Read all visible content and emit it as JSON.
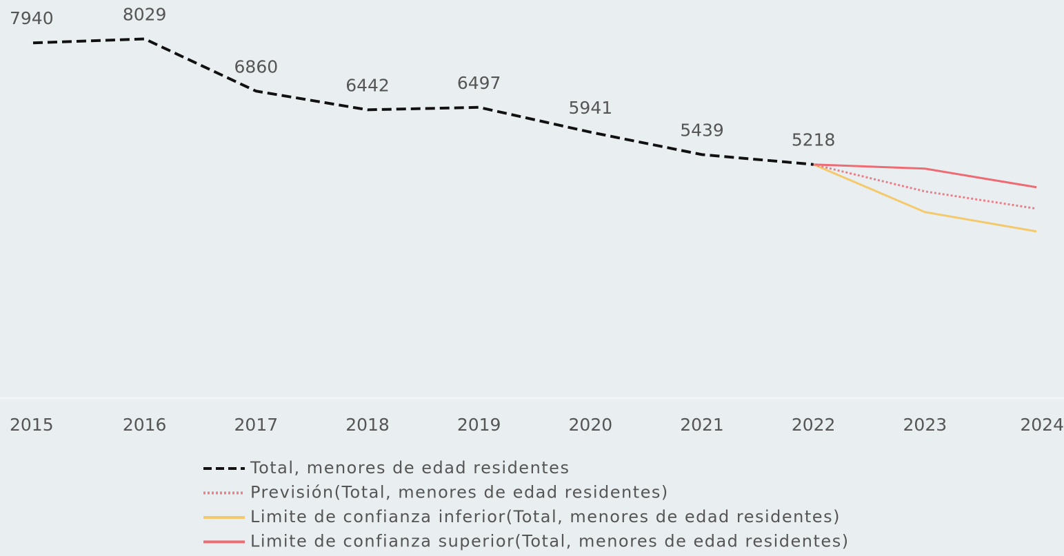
{
  "chart_data": {
    "type": "line",
    "categories": [
      "2015",
      "2016",
      "2017",
      "2018",
      "2019",
      "2020",
      "2021",
      "2022",
      "2023",
      "2024"
    ],
    "ylim": [
      0,
      8900
    ],
    "series": [
      {
        "name": "Total, menores de edad residentes",
        "color": "#111111",
        "dash": "dashed",
        "data_labels": true,
        "values": [
          7940,
          8029,
          6860,
          6442,
          6497,
          5941,
          5439,
          5218,
          null,
          null
        ]
      },
      {
        "name": "Previsión(Total, menores de edad residentes)",
        "color": "#e8808a",
        "dash": "dotted",
        "values": [
          null,
          null,
          null,
          null,
          null,
          null,
          null,
          5218,
          4615,
          4229
        ]
      },
      {
        "name": "Limite de confianza inferior(Total, menores de edad residentes)",
        "color": "#f4c96b",
        "dash": "solid",
        "values": [
          null,
          null,
          null,
          null,
          null,
          null,
          null,
          5218,
          4152,
          3719
        ]
      },
      {
        "name": "Limite de confianza superior(Total, menores de edad residentes)",
        "color": "#ef6b73",
        "dash": "solid",
        "values": [
          null,
          null,
          null,
          null,
          null,
          null,
          null,
          5218,
          5125,
          4708
        ]
      }
    ]
  }
}
